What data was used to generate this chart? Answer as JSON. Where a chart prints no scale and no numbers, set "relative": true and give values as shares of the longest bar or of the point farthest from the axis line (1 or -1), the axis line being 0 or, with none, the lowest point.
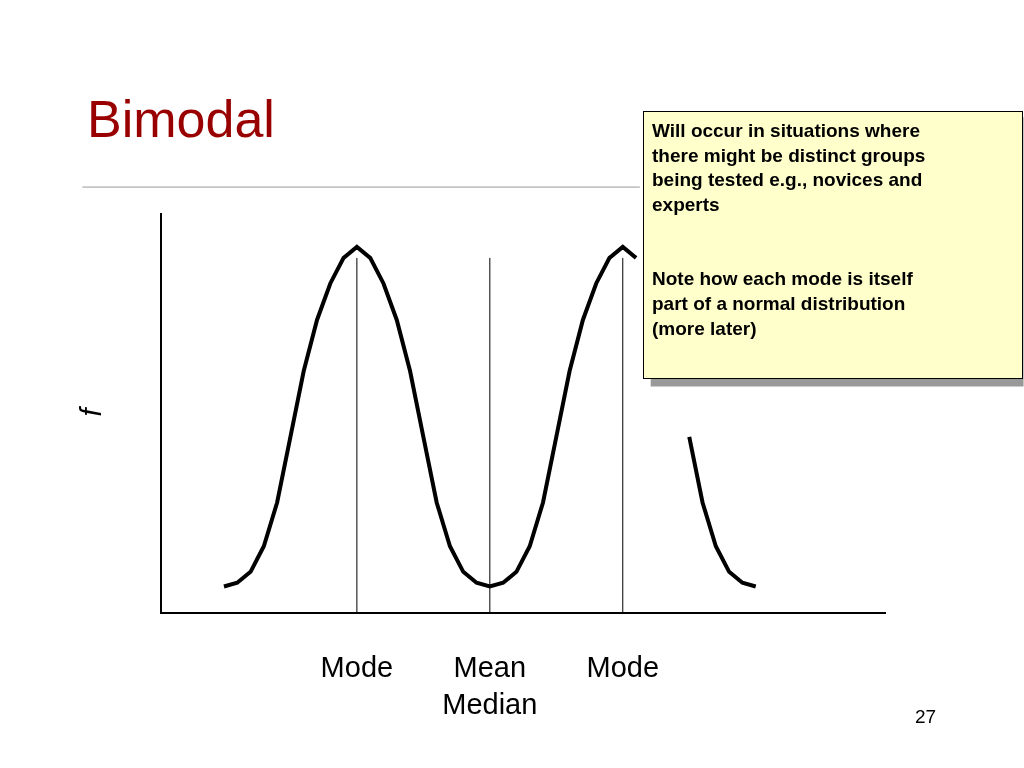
{
  "chart_data": {
    "type": "line",
    "title": "Bimodal",
    "ylabel": "f",
    "relative": true,
    "categories": [
      null,
      null,
      null,
      null,
      null,
      null,
      null,
      null,
      null,
      null,
      "Mode",
      null,
      null,
      null,
      null,
      null,
      null,
      null,
      null,
      null,
      "Mean\nMedian",
      null,
      null,
      null,
      null,
      null,
      null,
      null,
      null,
      null,
      "Mode",
      null,
      null,
      null,
      null,
      null,
      null,
      null,
      null,
      null,
      null
    ],
    "series": [
      {
        "color": "#000000",
        "values": [
          0.07,
          0.08,
          0.11,
          0.18,
          0.3,
          0.48,
          0.66,
          0.8,
          0.9,
          0.97,
          1.0,
          0.97,
          0.9,
          0.8,
          0.66,
          0.48,
          0.3,
          0.18,
          0.11,
          0.08,
          0.07,
          0.08,
          0.11,
          0.18,
          0.3,
          0.48,
          0.66,
          0.8,
          0.9,
          0.97,
          1.0,
          0.97,
          null,
          null,
          null,
          0.48,
          0.3,
          0.18,
          0.11,
          0.08,
          0.07
        ]
      }
    ],
    "annotations": [
      "Will occur in situations where\nthere might be distinct groups\nbeing tested e.g., novices and\nexperts\n\n\nNote how each mode is itself\npart of a normal distribution\n(more later)",
      "27"
    ],
    "marker": "none",
    "line_style": "solid",
    "grid": "x",
    "tick_labels": "x"
  }
}
